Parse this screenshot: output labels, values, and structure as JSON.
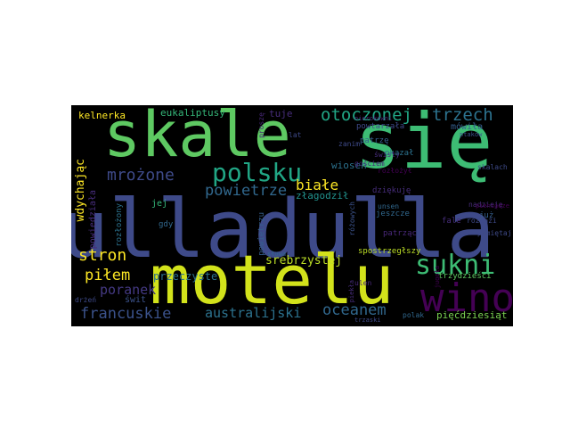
{
  "words": [
    {
      "text": "ulladulla",
      "color": "#3e4a89"
    },
    {
      "text": "skale",
      "color": "#5ec962"
    },
    {
      "text": "się",
      "color": "#3dbc74"
    },
    {
      "text": "motelu",
      "color": "#d2e21b"
    },
    {
      "text": "wino",
      "color": "#440154"
    },
    {
      "text": "sukni",
      "color": "#3dbc74"
    },
    {
      "text": "polsku",
      "color": "#21a685"
    },
    {
      "text": "mrożone",
      "color": "#3e4a89"
    },
    {
      "text": "otoczonej",
      "color": "#21a685"
    },
    {
      "text": "trzech",
      "color": "#2c728e"
    },
    {
      "text": "powietrze",
      "color": "#31688e"
    },
    {
      "text": "białe",
      "color": "#fde725"
    },
    {
      "text": "stron",
      "color": "#fde725"
    },
    {
      "text": "piłem",
      "color": "#fde725"
    },
    {
      "text": "poranek",
      "color": "#443983"
    },
    {
      "text": "francuskie",
      "color": "#3b528b"
    },
    {
      "text": "australijski",
      "color": "#2c728e"
    },
    {
      "text": "oceanem",
      "color": "#31688e"
    },
    {
      "text": "srebrzystej",
      "color": "#bddf26"
    },
    {
      "text": "przeczyste",
      "color": "#2c728e"
    },
    {
      "text": "eukaliptusy",
      "color": "#35b779"
    },
    {
      "text": "kelnerka",
      "color": "#fde725"
    },
    {
      "text": "tuje",
      "color": "#472d7b"
    },
    {
      "text": "wdychając",
      "color": "#fde725"
    },
    {
      "text": "złagodził",
      "color": "#21918c"
    },
    {
      "text": "wiosen",
      "color": "#2c728e"
    },
    {
      "text": "dziękuję",
      "color": "#472d7b"
    },
    {
      "text": "mówiła",
      "color": "#355f8d"
    },
    {
      "text": "okazał",
      "color": "#2c728e"
    },
    {
      "text": "spostrzegłszy",
      "color": "#bddf26"
    },
    {
      "text": "trzydzieści",
      "color": "#5ec962"
    },
    {
      "text": "pięćdziesiąt",
      "color": "#7ad151"
    },
    {
      "text": "jej",
      "color": "#35b779"
    },
    {
      "text": "gdy",
      "color": "#31688e"
    },
    {
      "text": "świt",
      "color": "#3b528b"
    },
    {
      "text": "już",
      "color": "#355f8d"
    },
    {
      "text": "patrzę",
      "color": "#355f8d"
    },
    {
      "text": "patrząc",
      "color": "#482878"
    },
    {
      "text": "jeszcze",
      "color": "#31688e"
    },
    {
      "text": "unsen",
      "color": "#31688e"
    },
    {
      "text": "ulen",
      "color": "#482878"
    },
    {
      "text": "skalach",
      "color": "#3e4a89"
    },
    {
      "text": "powtarzała",
      "color": "#3e4a89"
    },
    {
      "text": "świsty",
      "color": "#472d7b"
    },
    {
      "text": "gościem",
      "color": "#482878"
    },
    {
      "text": "zanim",
      "color": "#3e4a89"
    },
    {
      "text": "rozłożony",
      "color": "#2c728e"
    },
    {
      "text": "powiedziała",
      "color": "#472d7b"
    },
    {
      "text": "powietrzu",
      "color": "#355f8d"
    },
    {
      "text": "różowych",
      "color": "#3b528b"
    },
    {
      "text": "rozłożył",
      "color": "#440154"
    },
    {
      "text": "nadzieję",
      "color": "#472d7b"
    },
    {
      "text": "pamiętaj",
      "color": "#3e4a89"
    },
    {
      "text": "proszę",
      "color": "#482878"
    },
    {
      "text": "lat",
      "color": "#3e4a89"
    },
    {
      "text": "słowa",
      "color": "#31688e"
    },
    {
      "text": "ptaków",
      "color": "#3b528b"
    },
    {
      "text": "polak",
      "color": "#31688e"
    },
    {
      "text": "jugoła",
      "color": "#440154"
    },
    {
      "text": "piekła",
      "color": "#472d7b"
    },
    {
      "text": "drżeń",
      "color": "#3e4a89"
    },
    {
      "text": "trzaski",
      "color": "#3e4a89"
    },
    {
      "text": "nierokowni",
      "color": "#482878"
    },
    {
      "text": "fale",
      "color": "#472d7b"
    },
    {
      "text": "rozłaźi",
      "color": "#3e4a89"
    },
    {
      "text": "pieniędze",
      "color": "#440154"
    }
  ]
}
